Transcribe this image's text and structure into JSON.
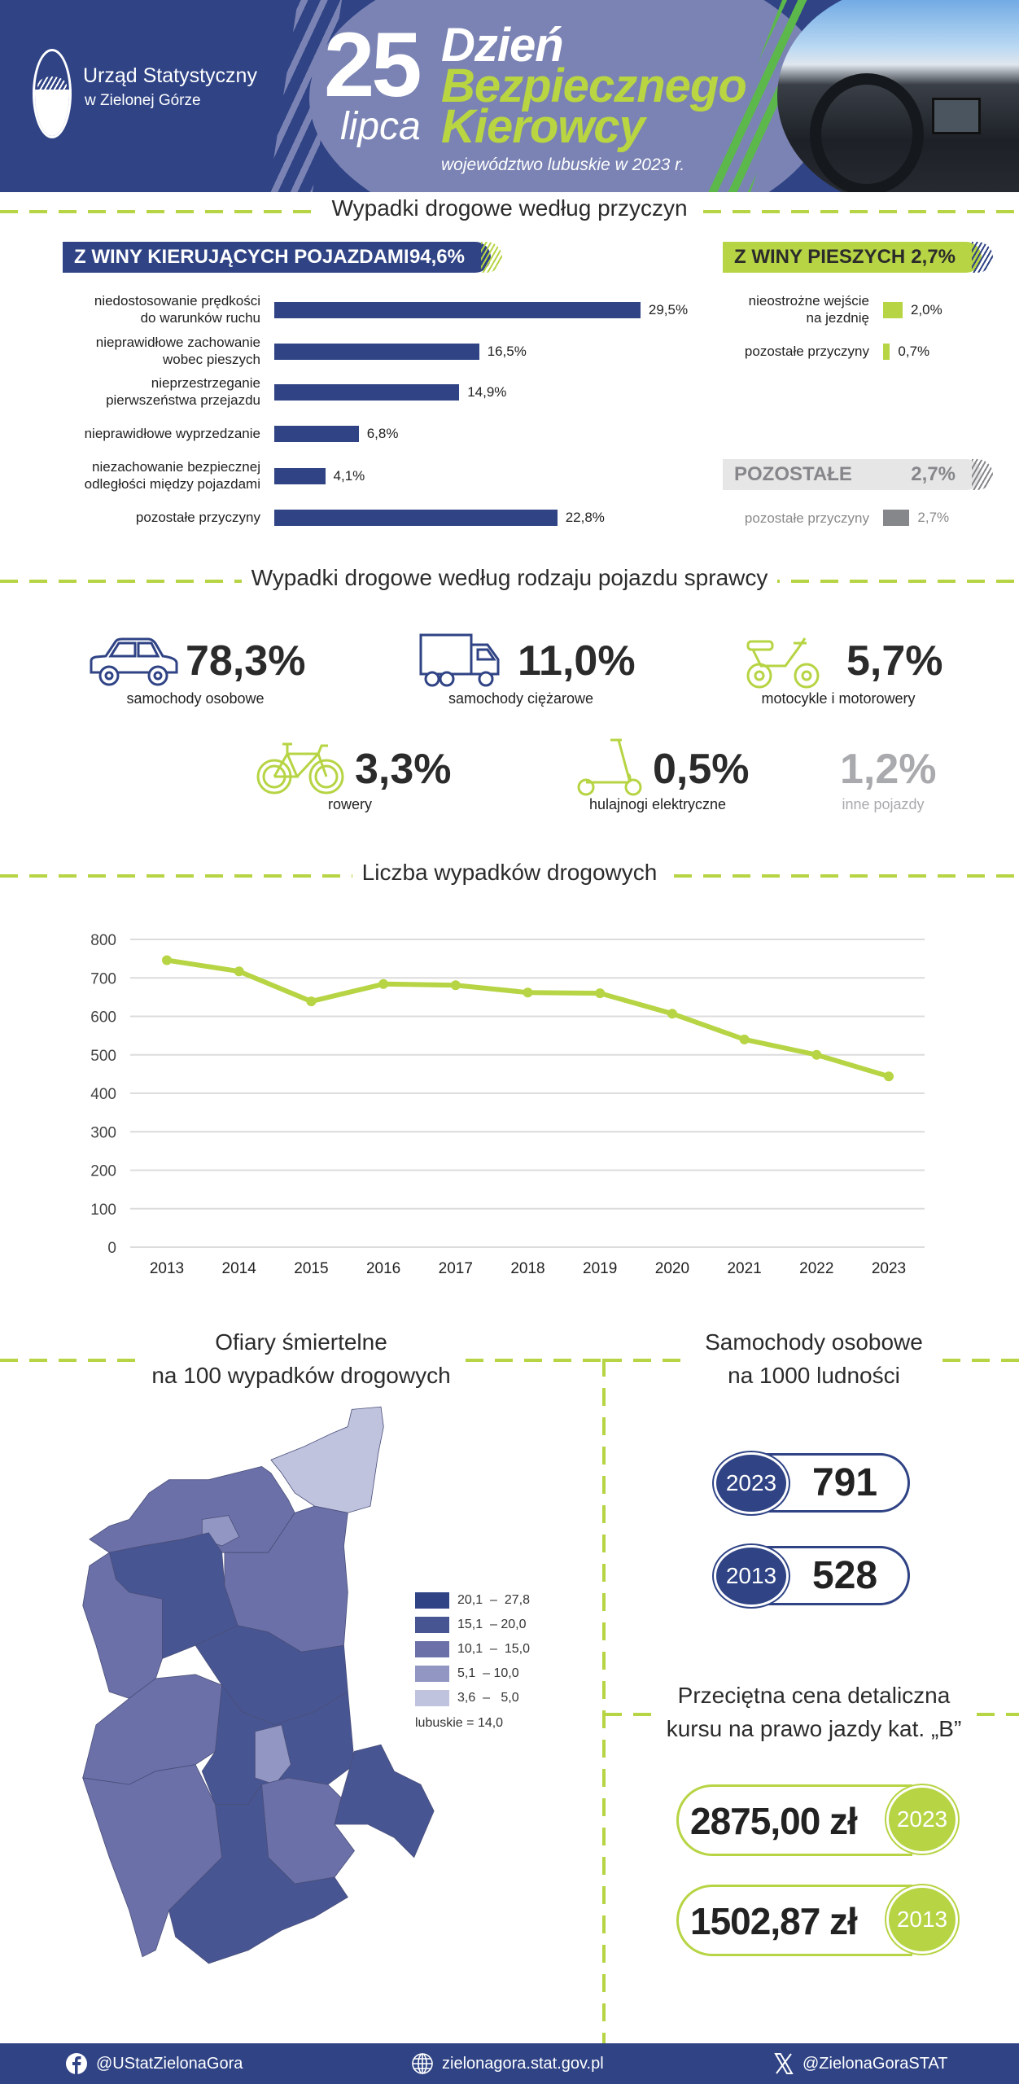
{
  "header": {
    "logo_line1": "Urząd Statystyczny",
    "logo_line2": "w Zielonej Górze",
    "day": "25",
    "month": "lipca",
    "title_line1": "Dzień",
    "title_line2": "Bezpiecznego",
    "title_line3": "Kierowcy",
    "subtitle": "województwo lubuskie w 2023 r."
  },
  "causes": {
    "title": "Wypadki drogowe według przyczyn",
    "drivers": {
      "label": "Z WINY KIERUJĄCYCH POJAZDAMI",
      "value": "94,6%",
      "items": [
        {
          "label1": "niedostosowanie prędkości",
          "label2": "do warunków ruchu",
          "value": 29.5,
          "text": "29,5%"
        },
        {
          "label1": "nieprawidłowe zachowanie",
          "label2": "wobec pieszych",
          "value": 16.5,
          "text": "16,5%"
        },
        {
          "label1": "nieprzestrzeganie",
          "label2": "pierwszeństwa przejazdu",
          "value": 14.9,
          "text": "14,9%"
        },
        {
          "label1": "nieprawidłowe wyprzedzanie",
          "label2": "",
          "value": 6.8,
          "text": "6,8%"
        },
        {
          "label1": "niezachowanie bezpiecznej",
          "label2": "odległości między pojazdami",
          "value": 4.1,
          "text": "4,1%"
        },
        {
          "label1": "pozostałe przyczyny",
          "label2": "",
          "value": 22.8,
          "text": "22,8%"
        }
      ]
    },
    "pedestrians": {
      "label": "Z WINY PIESZYCH",
      "value": "2,7%",
      "items": [
        {
          "label1": "nieostrożne wejście",
          "label2": "na jezdnię",
          "value": 2.0,
          "text": "2,0%"
        },
        {
          "label1": "pozostałe przyczyny",
          "label2": "",
          "value": 0.7,
          "text": "0,7%"
        }
      ]
    },
    "other": {
      "label": "POZOSTAŁE",
      "value": "2,7%",
      "items": [
        {
          "label1": "pozostałe przyczyny",
          "value": 2.7,
          "text": "2,7%"
        }
      ]
    }
  },
  "vehicles": {
    "title": "Wypadki drogowe według rodzaju pojazdu sprawcy",
    "items": [
      {
        "value": "78,3%",
        "label": "samochody osobowe",
        "icon": "car-icon"
      },
      {
        "value": "11,0%",
        "label": "samochody ciężarowe",
        "icon": "truck-icon"
      },
      {
        "value": "5,7%",
        "label": "motocykle i motorowery",
        "icon": "motorcycle-icon"
      },
      {
        "value": "3,3%",
        "label": "rowery",
        "icon": "bicycle-icon"
      },
      {
        "value": "0,5%",
        "label": "hulajnogi elektryczne",
        "icon": "scooter-icon"
      },
      {
        "value": "1,2%",
        "label": "inne pojazdy"
      }
    ]
  },
  "chart_data": {
    "type": "line",
    "title": "Liczba wypadków drogowych",
    "xlabel": "",
    "ylabel": "",
    "categories": [
      "2013",
      "2014",
      "2015",
      "2016",
      "2017",
      "2018",
      "2019",
      "2020",
      "2021",
      "2022",
      "2023"
    ],
    "series": [
      {
        "name": "Liczba wypadków drogowych",
        "values": [
          746,
          717,
          639,
          684,
          681,
          662,
          660,
          607,
          540,
          500,
          444
        ]
      }
    ],
    "ylim": [
      0,
      800
    ],
    "yticks": [
      0,
      100,
      200,
      300,
      400,
      500,
      600,
      700,
      800
    ],
    "grid": true,
    "color": "#b6d443"
  },
  "fatalities": {
    "title1": "Ofiary śmiertelne",
    "title2": "na 100 wypadków drogowych",
    "legend": [
      {
        "label": "20,1  –  27,8",
        "color": "#2f4385"
      },
      {
        "label": "15,1  – 20,0",
        "color": "#475592"
      },
      {
        "label": "10,1  –  15,0",
        "color": "#6b70a8"
      },
      {
        "label": "5,1  – 10,0",
        "color": "#9196c3"
      },
      {
        "label": "3,6  –   5,0",
        "color": "#bfc3de"
      }
    ],
    "note": "lubuskie = 14,0"
  },
  "cars": {
    "title1": "Samochody osobowe",
    "title2": "na 1000 ludności",
    "items": [
      {
        "year": "2023",
        "value": "791"
      },
      {
        "year": "2013",
        "value": "528"
      }
    ]
  },
  "license": {
    "title1": "Przeciętna cena detaliczna",
    "title2": "kursu na prawo jazdy kat. „B”",
    "items": [
      {
        "year": "2023",
        "value": "2875,00 zł"
      },
      {
        "year": "2013",
        "value": "1502,87 zł"
      }
    ]
  },
  "footer": {
    "facebook": "@UStatZielonaGora",
    "website": "zielonagora.stat.gov.pl",
    "x": "@ZielonaGoraSTAT"
  },
  "colors": {
    "navy": "#2f4385",
    "green": "#b6d443",
    "gray": "#86878b"
  }
}
